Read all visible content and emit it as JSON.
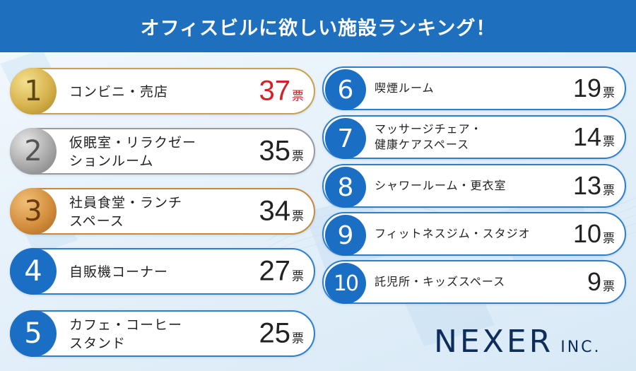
{
  "title": "オフィスビルに欲しい施設ランキング！",
  "unit": "票",
  "colors": {
    "banner": "#1f6fbf",
    "card_border": "#2d7fcc",
    "rank_blue": "#1a6fc4",
    "highlight_red": "#d3212a",
    "logo": "#0d2e5c"
  },
  "ranking": [
    {
      "rank": "1",
      "lines": [
        "コンビニ・売店"
      ],
      "votes": "37",
      "medal": "gold-medal"
    },
    {
      "rank": "2",
      "lines": [
        "仮眠室・リラクゼー",
        "ションルーム"
      ],
      "votes": "35",
      "medal": "silver-medal"
    },
    {
      "rank": "3",
      "lines": [
        "社員食堂・ランチ",
        "スペース"
      ],
      "votes": "34",
      "medal": "bronze-medal"
    },
    {
      "rank": "4",
      "lines": [
        "自販機コーナー"
      ],
      "votes": "27"
    },
    {
      "rank": "5",
      "lines": [
        "カフェ・コーヒー",
        "スタンド"
      ],
      "votes": "25"
    },
    {
      "rank": "6",
      "lines": [
        "喫煙ルーム"
      ],
      "votes": "19"
    },
    {
      "rank": "7",
      "lines": [
        "マッサージチェア・",
        "健康ケアスペース"
      ],
      "votes": "14"
    },
    {
      "rank": "8",
      "lines": [
        "シャワールーム・更衣室"
      ],
      "votes": "13"
    },
    {
      "rank": "9",
      "lines": [
        "フィットネスジム・スタジオ"
      ],
      "votes": "10"
    },
    {
      "rank": "10",
      "lines": [
        "託児所・キッズスペース"
      ],
      "votes": "9"
    }
  ],
  "logo": {
    "name": "NEXER",
    "suffix": "INC."
  }
}
